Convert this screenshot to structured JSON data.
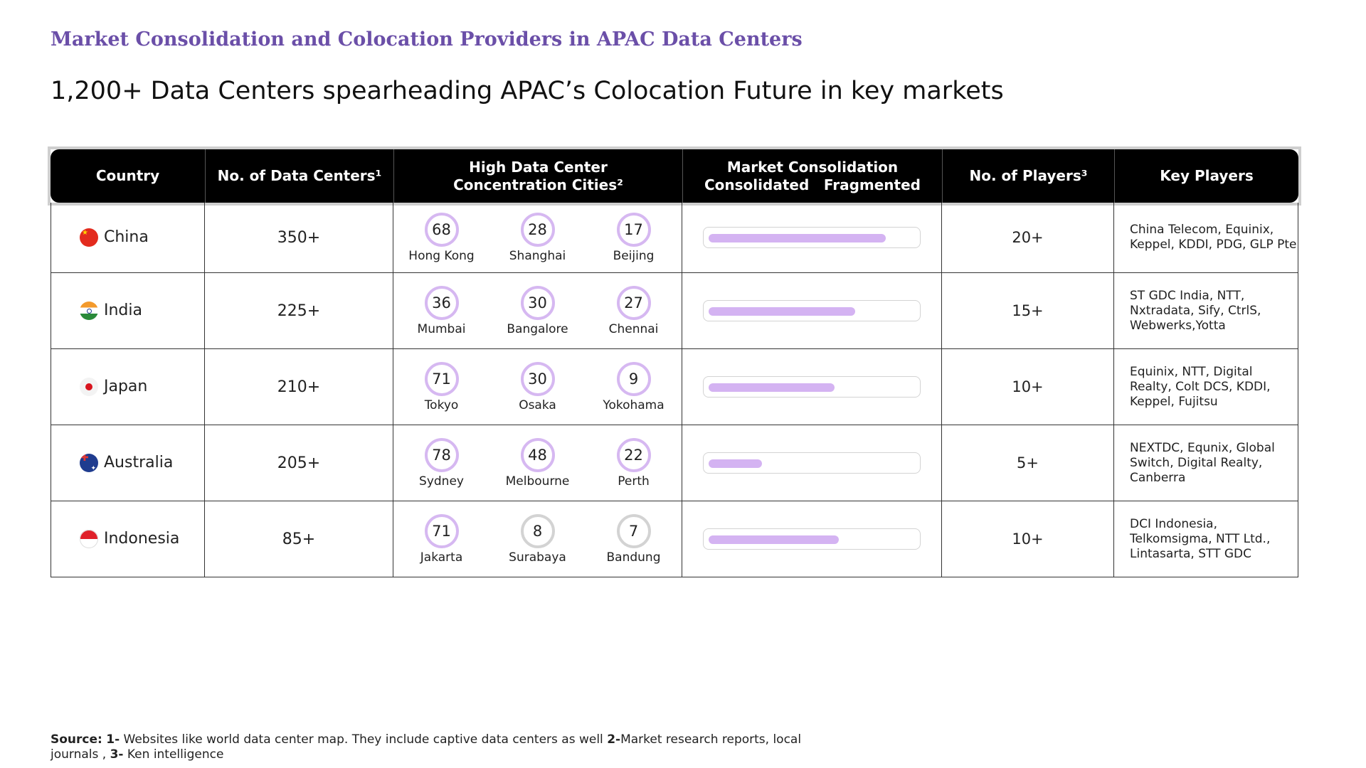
{
  "kicker": "Market Consolidation and Colocation Providers in APAC Data Centers",
  "headline": "1,200+ Data Centers spearheading APAC’s Colocation Future in key markets",
  "table": {
    "headers": {
      "country": "Country",
      "data_centers": "No. of Data Centers¹",
      "cities_line1": "High Data Center",
      "cities_line2": "Concentration Cities²",
      "consolidation_title": "Market Consolidation",
      "consolidated": "Consolidated",
      "fragmented": "Fragmented",
      "players": "No. of Players³",
      "key_players": "Key Players"
    },
    "rows": [
      {
        "country": "China",
        "flag": "china-flag-icon",
        "data_centers": "350+",
        "cities": [
          {
            "count": "68",
            "name": "Hong Kong",
            "ring": "purple"
          },
          {
            "count": "28",
            "name": "Shanghai",
            "ring": "purple"
          },
          {
            "count": "17",
            "name": "Beijing",
            "ring": "purple"
          }
        ],
        "consolidation": 0.86,
        "players": "20+",
        "key_players": "China Telecom, Equinix, Keppel, KDDI, PDG, GLP Pte"
      },
      {
        "country": "India",
        "flag": "india-flag-icon",
        "data_centers": "225+",
        "cities": [
          {
            "count": "36",
            "name": "Mumbai",
            "ring": "purple"
          },
          {
            "count": "30",
            "name": "Bangalore",
            "ring": "purple"
          },
          {
            "count": "27",
            "name": "Chennai",
            "ring": "purple"
          }
        ],
        "consolidation": 0.71,
        "players": "15+",
        "key_players": "ST GDC India, NTT, Nxtradata, Sify, CtrlS, Webwerks,Yotta"
      },
      {
        "country": "Japan",
        "flag": "japan-flag-icon",
        "data_centers": "210+",
        "cities": [
          {
            "count": "71",
            "name": "Tokyo",
            "ring": "purple"
          },
          {
            "count": "30",
            "name": "Osaka",
            "ring": "purple"
          },
          {
            "count": "9",
            "name": "Yokohama",
            "ring": "purple"
          }
        ],
        "consolidation": 0.61,
        "players": "10+",
        "key_players": "Equinix, NTT, Digital Realty, Colt DCS, KDDI, Keppel, Fujitsu"
      },
      {
        "country": "Australia",
        "flag": "australia-flag-icon",
        "data_centers": "205+",
        "cities": [
          {
            "count": "78",
            "name": "Sydney",
            "ring": "purple"
          },
          {
            "count": "48",
            "name": "Melbourne",
            "ring": "purple"
          },
          {
            "count": "22",
            "name": "Perth",
            "ring": "purple"
          }
        ],
        "consolidation": 0.26,
        "players": "5+",
        "key_players": "NEXTDC, Equnix, Global Switch, Digital Realty, Canberra"
      },
      {
        "country": "Indonesia",
        "flag": "indonesia-flag-icon",
        "data_centers": "85+",
        "cities": [
          {
            "count": "71",
            "name": "Jakarta",
            "ring": "purple"
          },
          {
            "count": "8",
            "name": "Surabaya",
            "ring": "grey"
          },
          {
            "count": "7",
            "name": "Bandung",
            "ring": "grey"
          }
        ],
        "consolidation": 0.63,
        "players": "10+",
        "key_players": "DCI Indonesia, Telkomsigma, NTT Ltd., Lintasarta, STT GDC"
      }
    ]
  },
  "footer": {
    "source_label": "Source:",
    "n1": "1-",
    "t1": "Websites like world data center map. They include captive data centers as well",
    "n2": "2-",
    "t2": "Market research reports, local journals ,",
    "n3": "3-",
    "t3": "Ken intelligence"
  },
  "colors": {
    "accent": "#6b4fa8",
    "bar": "#d4b3f2",
    "ring": "#d6b8f1",
    "ring_grey": "#d3d3d3",
    "header_bg": "#000000"
  }
}
